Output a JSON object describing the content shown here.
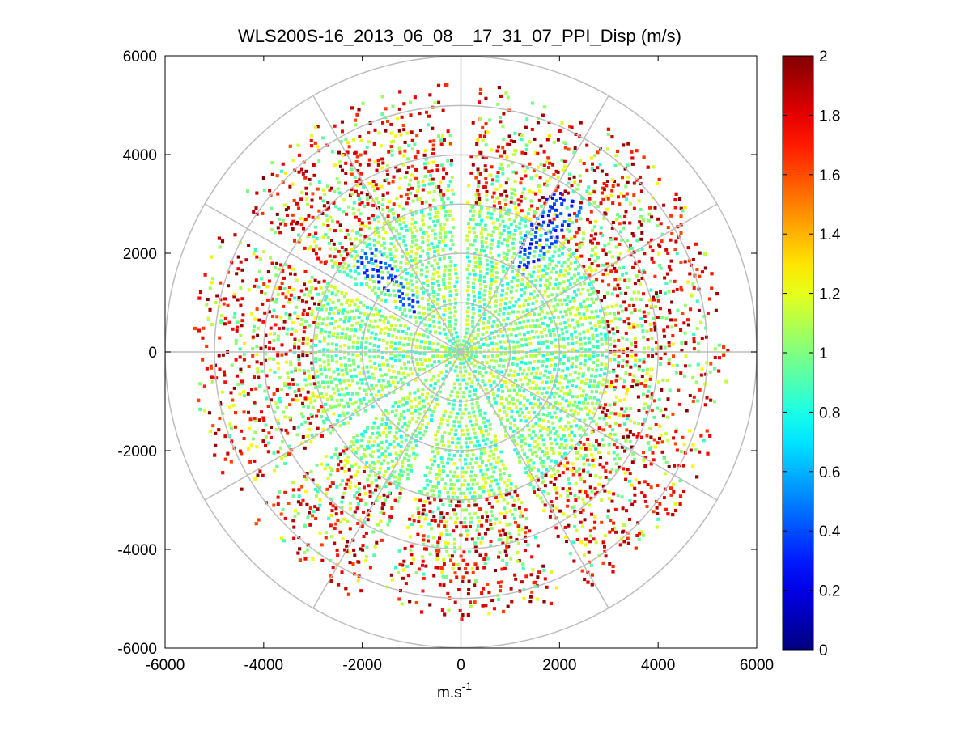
{
  "chart_data": {
    "type": "heatmap",
    "subtype": "polar-ppi-scan",
    "title": "WLS200S-16_2013_06_08__17_31_07_PPI_Disp (m/s)",
    "xlabel": "m.s",
    "xlabel_exponent": "-1",
    "ylabel": "",
    "xlim": [
      -6000,
      6000
    ],
    "ylim": [
      -6000,
      6000
    ],
    "xticks": [
      -6000,
      -4000,
      -2000,
      0,
      2000,
      4000,
      6000
    ],
    "yticks": [
      6000,
      4000,
      2000,
      0,
      -2000,
      -4000,
      -6000
    ],
    "xtick_labels": [
      "-6000",
      "-4000",
      "-2000",
      "0",
      "2000",
      "4000",
      "6000"
    ],
    "ytick_labels": [
      "6000",
      "4000",
      "2000",
      "0",
      "-2000",
      "-4000",
      "-6000"
    ],
    "polar_grid_radii": [
      1000,
      2000,
      3000,
      4000,
      5000,
      6000
    ],
    "polar_grid_angles_deg": [
      0,
      30,
      60,
      90,
      120,
      150,
      180,
      210,
      240,
      270,
      300,
      330
    ],
    "colorbar": {
      "colormap": "jet",
      "clim": [
        0,
        2
      ],
      "ticks": [
        0,
        0.2,
        0.4,
        0.6,
        0.8,
        1,
        1.2,
        1.4,
        1.6,
        1.8,
        2
      ],
      "tick_labels": [
        "0",
        "0.2",
        "0.4",
        "0.6",
        "0.8",
        "1",
        "1.2",
        "1.4",
        "1.6",
        "1.8",
        "2"
      ]
    },
    "data_summary": {
      "inner_disk_radius_m": 3000,
      "inner_disk_value_range": [
        0.8,
        1.2
      ],
      "typical_value": 1.0,
      "outer_edge_radius_m": 5500,
      "outer_edge_values": "high (1.6-2.0), sparse",
      "low_value_streaks": [
        {
          "azimuth_deg": 315,
          "radius_range_m": [
            1200,
            2800
          ],
          "value": 0.4
        },
        {
          "azimuth_deg": 35,
          "radius_range_m": [
            2000,
            3800
          ],
          "value": 0.4
        }
      ],
      "data_gaps_azimuth_deg": [
        0,
        200,
        235,
        300,
        155
      ]
    }
  }
}
